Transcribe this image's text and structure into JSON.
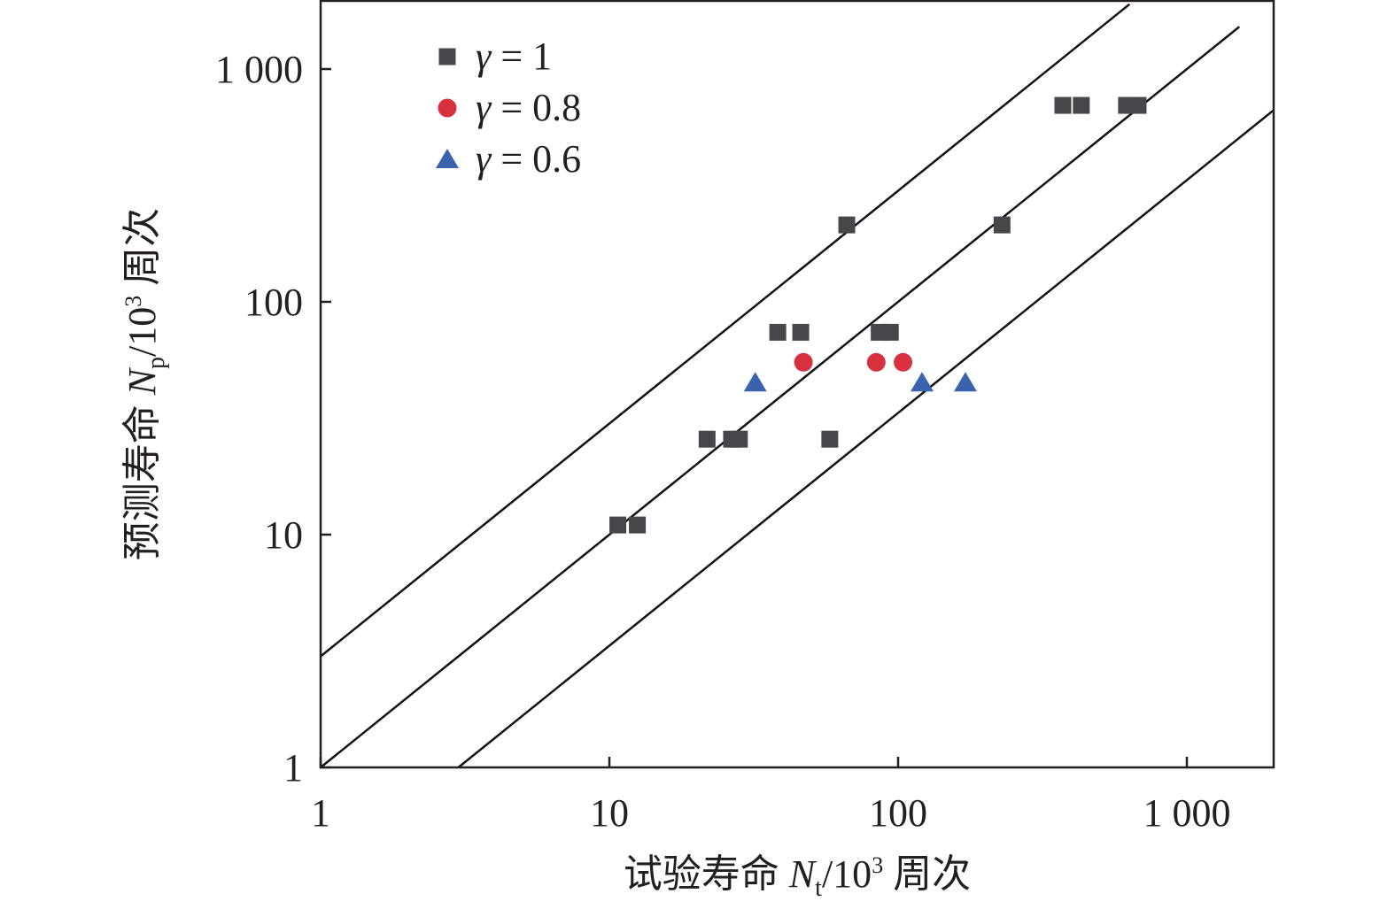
{
  "chart_data": {
    "type": "scatter",
    "title": "",
    "xlabel": "试验寿命 Nt/10³ 周次",
    "xlabel_parts": {
      "prefix": "试验寿命 ",
      "var": "N",
      "sub": "t",
      "unit": "/10",
      "sup": "3",
      "suffix": " 周次"
    },
    "ylabel": "预测寿命 Np/10³ 周次",
    "ylabel_parts": {
      "prefix": "预测寿命 ",
      "var": "N",
      "sub": "p",
      "unit": "/10",
      "sup": "3",
      "suffix": " 周次"
    },
    "xscale": "log",
    "yscale": "log",
    "xlim": [
      1,
      2000
    ],
    "ylim": [
      1,
      2000
    ],
    "xticks": [
      1,
      10,
      100,
      1000
    ],
    "xtick_labels": [
      "1",
      "10",
      "100",
      "1 000"
    ],
    "yticks": [
      1,
      10,
      100,
      1000
    ],
    "ytick_labels": [
      "1",
      "10",
      "100",
      "1 000"
    ],
    "grid": false,
    "legend_position": "top-left",
    "reference_lines": [
      {
        "name": "3x band upper",
        "factor": 3
      },
      {
        "name": "perfect agreement",
        "factor": 1
      },
      {
        "name": "3x band lower",
        "factor": 0.3333
      }
    ],
    "series": [
      {
        "name": "γ = 1",
        "marker": "square",
        "color": "#47474b",
        "points": [
          [
            10.7,
            11
          ],
          [
            12.5,
            11
          ],
          [
            21.8,
            25.7
          ],
          [
            26.5,
            25.7
          ],
          [
            28.2,
            25.7
          ],
          [
            58,
            25.7
          ],
          [
            38.3,
            74
          ],
          [
            46,
            74
          ],
          [
            86,
            74
          ],
          [
            94,
            74
          ],
          [
            66.4,
            214
          ],
          [
            229,
            214
          ],
          [
            372,
            698
          ],
          [
            431,
            698
          ],
          [
            618,
            698
          ],
          [
            678,
            698
          ]
        ]
      },
      {
        "name": "γ = 0.8",
        "marker": "circle",
        "color": "#d7303f",
        "points": [
          [
            47,
            55
          ],
          [
            84,
            55
          ],
          [
            104,
            55
          ]
        ]
      },
      {
        "name": "γ = 0.6",
        "marker": "triangle",
        "color": "#3a62ad",
        "points": [
          [
            32,
            45
          ],
          [
            121,
            45
          ],
          [
            171,
            45
          ]
        ]
      }
    ]
  }
}
